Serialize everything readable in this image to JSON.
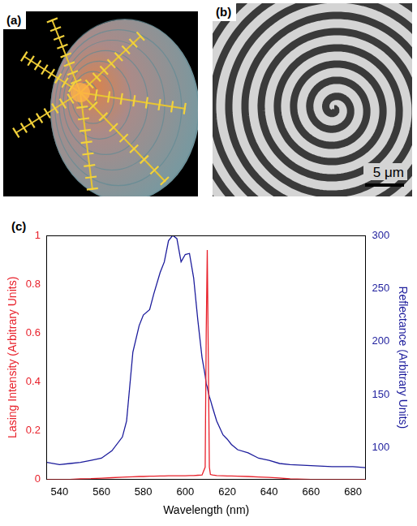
{
  "panels": [
    {
      "label": "(a)"
    },
    {
      "label": "(b)",
      "scale_bar": "5 μm"
    },
    {
      "label": "(c)"
    }
  ],
  "chart_data": {
    "type": "line",
    "x_label": "Wavelength (nm)",
    "y_label": "Lasing Intensity (Arbitrary Units)",
    "y2_label": "Reflectance (Arbitrary Units)",
    "x": [
      534,
      540,
      545,
      550,
      555,
      560,
      565,
      570,
      572,
      575,
      578,
      580,
      583,
      585,
      588,
      590,
      592,
      594,
      596,
      598,
      600,
      602,
      604,
      606,
      608,
      609.5,
      610,
      610.5,
      611,
      611.5,
      612,
      613,
      615,
      618,
      620,
      622,
      625,
      630,
      635,
      640,
      645,
      650,
      660,
      670,
      680,
      686
    ],
    "xlim": [
      534,
      686
    ],
    "xticks": [
      540,
      560,
      580,
      600,
      620,
      640,
      660,
      680
    ],
    "ylim": [
      0,
      1
    ],
    "yticks": [
      0,
      0.2,
      0.4,
      0.6,
      0.8,
      1
    ],
    "y2lim": [
      70,
      300
    ],
    "y2ticks": [
      100,
      150,
      200,
      250,
      300
    ],
    "grid": false,
    "series": [
      {
        "color": "#e8202a",
        "axis": "y",
        "values": [
          0,
          0,
          0,
          0.002,
          0.003,
          0.005,
          0.007,
          0.009,
          0.01,
          0.011,
          0.012,
          0.012,
          0.013,
          0.013,
          0.014,
          0.014,
          0.015,
          0.015,
          0.015,
          0.015,
          0.015,
          0.016,
          0.016,
          0.017,
          0.018,
          0.05,
          0.6,
          0.94,
          0.5,
          0.05,
          0.02,
          0.018,
          0.016,
          0.015,
          0.014,
          0.014,
          0.013,
          0.012,
          0.01,
          0.008,
          0.006,
          0.002,
          0,
          0,
          0,
          0
        ]
      },
      {
        "color": "#1c1c9c",
        "axis": "y2",
        "values": [
          86,
          84,
          85,
          86,
          88,
          90,
          97,
          110,
          125,
          190,
          215,
          225,
          230,
          245,
          265,
          275,
          295,
          300,
          297,
          275,
          282,
          283,
          260,
          220,
          185,
          168,
          160,
          157,
          152,
          148,
          145,
          138,
          125,
          112,
          108,
          103,
          98,
          95,
          90,
          88,
          85,
          84,
          83,
          82,
          82,
          81
        ]
      }
    ]
  }
}
